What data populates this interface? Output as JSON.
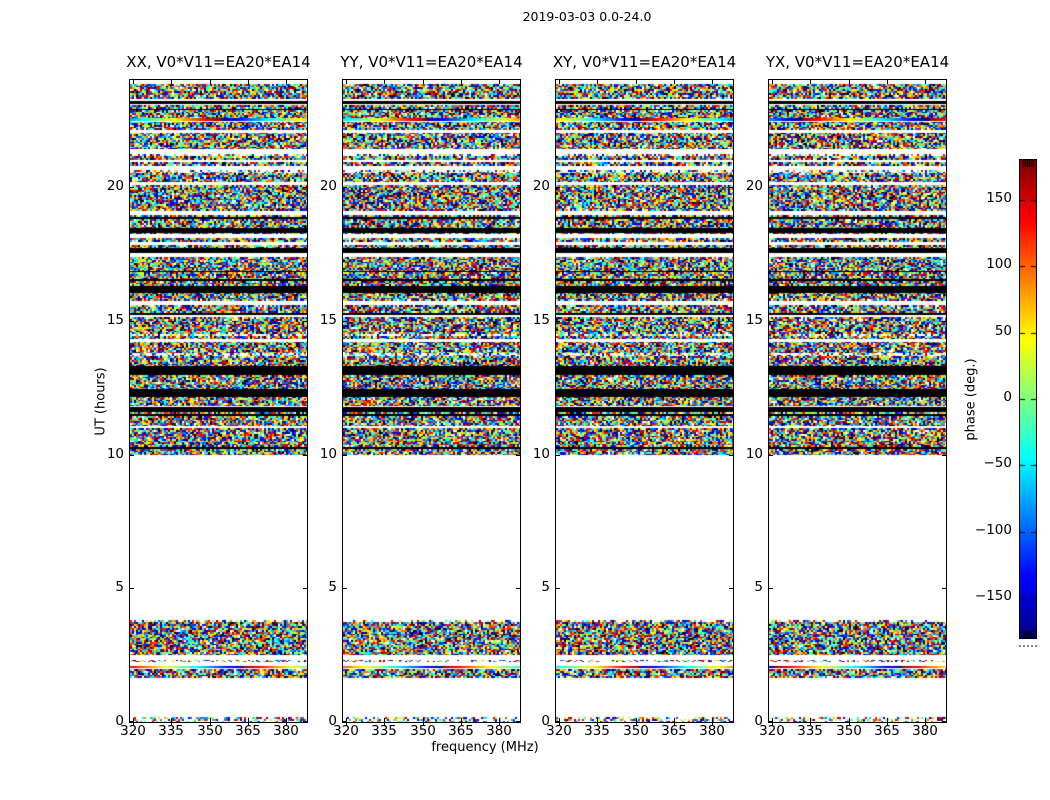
{
  "chart_data": {
    "type": "heatmap",
    "suptitle": "2019-03-03 0.0-24.0",
    "xlabel": "frequency (MHz)",
    "ylabel": "UT (hours)",
    "panels": [
      {
        "title": "XX, V0*V11=EA20*EA14"
      },
      {
        "title": "YY, V0*V11=EA20*EA14"
      },
      {
        "title": "XY, V0*V11=EA20*EA14"
      },
      {
        "title": "YX, V0*V11=EA20*EA14"
      }
    ],
    "x_range": [
      319,
      388
    ],
    "x_ticks": [
      320,
      335,
      350,
      365,
      380
    ],
    "x_tick_labels": [
      "320",
      "335",
      "350",
      "365",
      "380"
    ],
    "y_range": [
      0,
      24
    ],
    "y_ticks": [
      0,
      5,
      10,
      15,
      20
    ],
    "y_tick_labels": [
      "0",
      "5",
      "10",
      "15",
      "20"
    ],
    "colorbar": {
      "label": "phase (deg.)",
      "range": [
        -180,
        180
      ],
      "ticks": [
        150,
        100,
        50,
        0,
        -50,
        -100,
        -150
      ],
      "tick_labels": [
        "150",
        "100",
        "50",
        "0",
        "−50",
        "−100",
        "−150"
      ],
      "colormap": "jet"
    },
    "data_blocks": [
      {
        "t_start": 10.0,
        "t_end": 24.0,
        "fill": "banded-noise"
      },
      {
        "t_start": 1.65,
        "t_end": 3.8,
        "fill": "banded-noise"
      },
      {
        "t_start": 0.0,
        "t_end": 0.18,
        "fill": "sparse-noise"
      }
    ],
    "features": [
      {
        "h0": 23.1,
        "h1": 23.22,
        "type": "black"
      },
      {
        "h0": 22.42,
        "h1": 22.58,
        "type": "gradient"
      },
      {
        "h0": 22.0,
        "h1": 22.12,
        "type": "white"
      },
      {
        "h0": 21.3,
        "h1": 21.42,
        "type": "white"
      },
      {
        "h0": 20.92,
        "h1": 21.0,
        "type": "white"
      },
      {
        "h0": 18.28,
        "h1": 18.45,
        "type": "black"
      },
      {
        "h0": 17.52,
        "h1": 17.72,
        "type": "black"
      },
      {
        "h0": 16.05,
        "h1": 16.3,
        "type": "black"
      },
      {
        "h0": 15.62,
        "h1": 15.72,
        "type": "white"
      },
      {
        "h0": 14.18,
        "h1": 14.3,
        "type": "white"
      },
      {
        "h0": 12.95,
        "h1": 13.3,
        "type": "black"
      },
      {
        "h0": 12.15,
        "h1": 12.45,
        "type": "black"
      },
      {
        "h0": 11.6,
        "h1": 11.78,
        "type": "black"
      },
      {
        "h0": 2.3,
        "h1": 2.42,
        "type": "white"
      },
      {
        "h0": 1.95,
        "h1": 2.08,
        "type": "gradient"
      }
    ],
    "seeds": {
      "rows": 1337,
      "noise": 4242
    }
  }
}
